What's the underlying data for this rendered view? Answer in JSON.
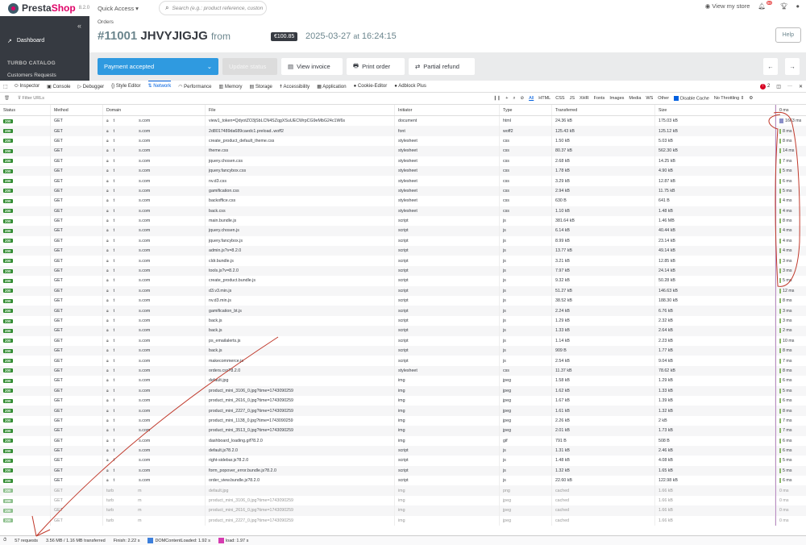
{
  "app": {
    "brand_a": "Presta",
    "brand_b": "Shop",
    "version": "8.2.0",
    "quick_access": "Quick Access ▾",
    "search_placeholder": "Search (e.g.: product reference, custon",
    "view_store": "View my store",
    "notif_count": "50"
  },
  "sidebar": {
    "dashboard": "Dashboard",
    "section": "TURBO CATALOG",
    "sub": "Customers Requests"
  },
  "order": {
    "breadcrumb": "Orders",
    "number": "#11001",
    "ref": "JHVYJIGJG",
    "from": "from",
    "price": "€100.85",
    "date": "2025-03-27",
    "at": "at",
    "time": "16:24:15",
    "help": "Help"
  },
  "actions": {
    "status": "Payment accepted",
    "update": "Update status",
    "invoice": "View invoice",
    "print": "Print order",
    "refund": "Partial refund",
    "prev": "←",
    "next": "→"
  },
  "devtools": {
    "tabs": [
      "Inspector",
      "Console",
      "Debugger",
      "Style Editor",
      "Network",
      "Performance",
      "Memory",
      "Storage",
      "Accessibility",
      "Application",
      "Cookie-Editor",
      "Adblock Plus"
    ],
    "active_tab": "Network",
    "error_count": "2",
    "filter_placeholder": "Filter URLs",
    "type_filters": [
      "All",
      "HTML",
      "CSS",
      "JS",
      "XHR",
      "Fonts",
      "Images",
      "Media",
      "WS",
      "Other"
    ],
    "disable_cache": "Disable Cache",
    "throttling": "No Throttling ⇕",
    "columns": [
      "Status",
      "Method",
      "Domain",
      "File",
      "Initiator",
      "Type",
      "Transferred",
      "Size",
      "0 ms"
    ],
    "rows": [
      [
        "200",
        "GET",
        "view1_token=QdyotZO3jSbLCN4SZqgXSuUECWrpCG9eMbG24c1W6s",
        "document",
        "html",
        "24.36 kB",
        "175.03 kB",
        "1663 ms"
      ],
      [
        "200",
        "GET",
        "2d8017489da689caedc1.preload..woff2",
        "font",
        "woff2",
        "125.43 kB",
        "125.12 kB",
        "8 ms"
      ],
      [
        "200",
        "GET",
        "create_product_default_theme.css",
        "stylesheet",
        "css",
        "1.50 kB",
        "5.03 kB",
        "8 ms"
      ],
      [
        "200",
        "GET",
        "theme.css",
        "stylesheet",
        "css",
        "80.37 kB",
        "562.30 kB",
        "14 ms"
      ],
      [
        "200",
        "GET",
        "jquery.chosen.css",
        "stylesheet",
        "css",
        "2.68 kB",
        "14.25 kB",
        "7 ms"
      ],
      [
        "200",
        "GET",
        "jquery.fancybox.css",
        "stylesheet",
        "css",
        "1.78 kB",
        "4.90 kB",
        "5 ms"
      ],
      [
        "200",
        "GET",
        "nv.d3.css",
        "stylesheet",
        "css",
        "3.29 kB",
        "12.87 kB",
        "6 ms"
      ],
      [
        "200",
        "GET",
        "gamification.css",
        "stylesheet",
        "css",
        "2.94 kB",
        "11.75 kB",
        "5 ms"
      ],
      [
        "200",
        "GET",
        "backoffice.css",
        "stylesheet",
        "css",
        "630 B",
        "641 B",
        "4 ms"
      ],
      [
        "200",
        "GET",
        "back.css",
        "stylesheet",
        "css",
        "1.10 kB",
        "1.48 kB",
        "4 ms"
      ],
      [
        "200",
        "GET",
        "main.bundle.js",
        "script",
        "js",
        "381.64 kB",
        "1.46 MB",
        "8 ms"
      ],
      [
        "200",
        "GET",
        "jquery.chosen.js",
        "script",
        "js",
        "6.14 kB",
        "40.44 kB",
        "4 ms"
      ],
      [
        "200",
        "GET",
        "jquery.fancybox.js",
        "script",
        "js",
        "8.99 kB",
        "23.14 kB",
        "4 ms"
      ],
      [
        "200",
        "GET",
        "admin.js?v=8.2.0",
        "script",
        "js",
        "13.77 kB",
        "49.14 kB",
        "4 ms"
      ],
      [
        "200",
        "GET",
        "cldr.bundle.js",
        "script",
        "js",
        "3.21 kB",
        "12.85 kB",
        "3 ms"
      ],
      [
        "200",
        "GET",
        "tools.js?v=8.2.0",
        "script",
        "js",
        "7.97 kB",
        "24.14 kB",
        "3 ms"
      ],
      [
        "200",
        "GET",
        "create_product.bundle.js",
        "script",
        "js",
        "9.32 kB",
        "50.28 kB",
        "5 ms"
      ],
      [
        "200",
        "GET",
        "d3.v3.min.js",
        "script",
        "js",
        "51.27 kB",
        "146.63 kB",
        "12 ms"
      ],
      [
        "200",
        "GET",
        "nv.d3.min.js",
        "script",
        "js",
        "38.52 kB",
        "188.30 kB",
        "8 ms"
      ],
      [
        "200",
        "GET",
        "gamification_bt.js",
        "script",
        "js",
        "2.24 kB",
        "6.76 kB",
        "3 ms"
      ],
      [
        "200",
        "GET",
        "back.js",
        "script",
        "js",
        "1.29 kB",
        "2.32 kB",
        "3 ms"
      ],
      [
        "200",
        "GET",
        "back.js",
        "script",
        "js",
        "1.33 kB",
        "2.64 kB",
        "2 ms"
      ],
      [
        "200",
        "GET",
        "ps_emailalerts.js",
        "script",
        "js",
        "1.14 kB",
        "2.23 kB",
        "10 ms"
      ],
      [
        "200",
        "GET",
        "back.js",
        "script",
        "js",
        "909 B",
        "1.77 kB",
        "8 ms"
      ],
      [
        "200",
        "GET",
        "makecommerce.js",
        "script",
        "js",
        "2.54 kB",
        "9.04 kB",
        "7 ms"
      ],
      [
        "200",
        "GET",
        "orders.css?8.2.0",
        "stylesheet",
        "css",
        "11.37 kB",
        "78.62 kB",
        "8 ms"
      ],
      [
        "200",
        "GET",
        "default.jpg",
        "img",
        "jpeg",
        "1.58 kB",
        "1.29 kB",
        "6 ms"
      ],
      [
        "200",
        "GET",
        "product_mini_3106_0.jpg?time=1743090259",
        "img",
        "jpeg",
        "1.62 kB",
        "1.33 kB",
        "5 ms"
      ],
      [
        "200",
        "GET",
        "product_mini_2616_0.jpg?time=1743090259",
        "img",
        "jpeg",
        "1.67 kB",
        "1.39 kB",
        "6 ms"
      ],
      [
        "200",
        "GET",
        "product_mini_2227_0.jpg?time=1743090259",
        "img",
        "jpeg",
        "1.61 kB",
        "1.32 kB",
        "8 ms"
      ],
      [
        "200",
        "GET",
        "product_mini_1138_0.jpg?time=1743090259",
        "img",
        "jpeg",
        "2.26 kB",
        "2 kB",
        "7 ms"
      ],
      [
        "200",
        "GET",
        "product_mini_3513_0.jpg?time=1743090259",
        "img",
        "jpeg",
        "2.01 kB",
        "1.73 kB",
        "7 ms"
      ],
      [
        "200",
        "GET",
        "dashboard_loading.gif?8.2.0",
        "img",
        "gif",
        "791 B",
        "508 B",
        "6 ms"
      ],
      [
        "200",
        "GET",
        "default.js?8.2.0",
        "script",
        "js",
        "1.31 kB",
        "2.46 kB",
        "6 ms"
      ],
      [
        "200",
        "GET",
        "right-sidebar.js?8.2.0",
        "script",
        "js",
        "1.48 kB",
        "4.08 kB",
        "5 ms"
      ],
      [
        "200",
        "GET",
        "form_popover_error.bundle.js?8.2.0",
        "script",
        "js",
        "1.32 kB",
        "1.65 kB",
        "5 ms"
      ],
      [
        "200",
        "GET",
        "order_view.bundle.js?8.2.0",
        "script",
        "js",
        "22.60 kB",
        "122.98 kB",
        "6 ms"
      ],
      [
        "200",
        "GET",
        "default.jpg",
        "img",
        "png",
        "cached",
        "1.66 kB",
        "0 ms"
      ],
      [
        "200",
        "GET",
        "product_mini_3106_0.jpg?time=1743090259",
        "img",
        "jpeg",
        "cached",
        "1.66 kB",
        "0 ms"
      ],
      [
        "200",
        "GET",
        "product_mini_2616_0.jpg?time=1743090259",
        "img",
        "jpeg",
        "cached",
        "1.66 kB",
        "0 ms"
      ],
      [
        "200",
        "GET",
        "product_mini_2227_0.jpg?time=1743090259",
        "img",
        "jpeg",
        "cached",
        "1.66 kB",
        "0 ms"
      ]
    ],
    "domain_secure": [
      "t",
      "s.com"
    ],
    "domain_cached": [
      "turb",
      "m"
    ],
    "footer": {
      "requests": "57 requests",
      "transferred": "3.56 MB / 1.16 MB transferred",
      "finish": "Finish: 2.22 s",
      "dcl": "DOMContentLoaded: 1.92 s",
      "load": "load: 1.97 s"
    },
    "colors": {
      "status_ok": "#2e8b2e",
      "dcl": "#3c7fdc",
      "load": "#d63bb0",
      "accent": "#0060df",
      "annotation": "#c0392b"
    }
  }
}
